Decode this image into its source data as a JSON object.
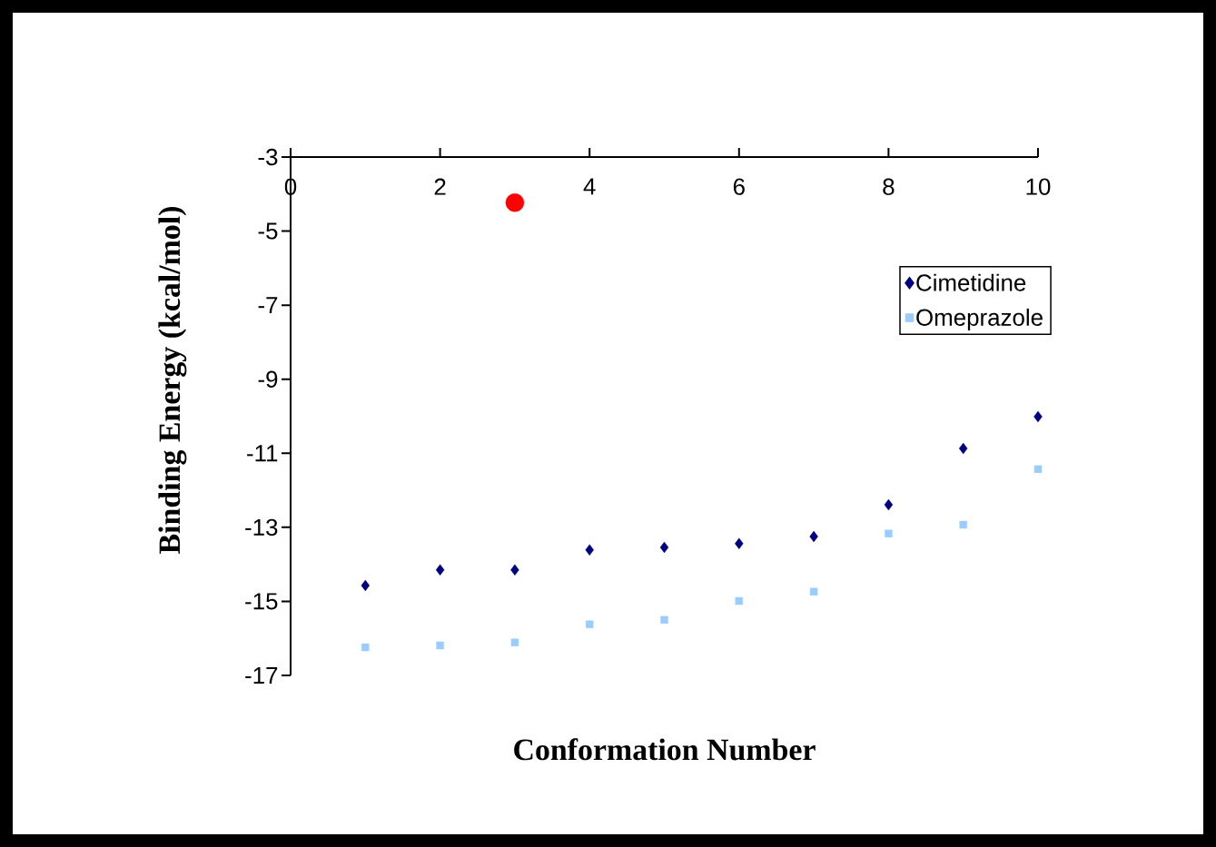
{
  "chart_data": {
    "type": "scatter",
    "xlabel": "Conformation Number",
    "ylabel": "Binding Energy (kcal/mol)",
    "x": [
      1,
      2,
      3,
      4,
      5,
      6,
      7,
      8,
      9,
      10
    ],
    "series": [
      {
        "name": "Cimetidine",
        "color": "#000080",
        "marker": "diamond",
        "values": [
          -14.57,
          -14.15,
          -14.15,
          -13.61,
          -13.54,
          -13.44,
          -13.25,
          -12.39,
          -10.87,
          -10.01
        ]
      },
      {
        "name": "Omeprazole",
        "color": "#99ccff",
        "marker": "square",
        "values": [
          -16.24,
          -16.19,
          -16.11,
          -15.62,
          -15.5,
          -14.99,
          -14.74,
          -13.17,
          -12.93,
          -11.43
        ]
      },
      {
        "color": "#ff0000",
        "marker": "circle",
        "x": [
          3
        ],
        "values": [
          -4.23
        ]
      }
    ],
    "xlim": [
      0,
      10
    ],
    "ylim": [
      -17,
      -3
    ],
    "xticks": [
      0,
      2,
      4,
      6,
      8,
      10
    ],
    "yticks": [
      -3,
      -5,
      -7,
      -9,
      -11,
      -13,
      -15,
      -17
    ],
    "legend": "right",
    "grid": false
  }
}
